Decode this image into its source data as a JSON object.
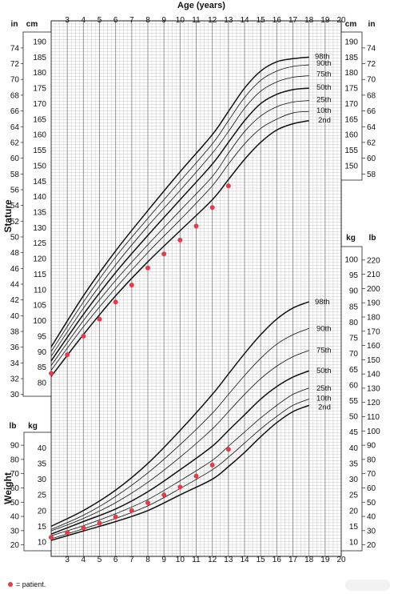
{
  "chart_data": {
    "type": "line",
    "title": "Age (years)",
    "x_range": [
      2,
      20
    ],
    "x_ticks": [
      3,
      4,
      5,
      6,
      7,
      8,
      9,
      10,
      11,
      12,
      13,
      14,
      15,
      16,
      17,
      18,
      19,
      20
    ],
    "stature": {
      "label": "Stature",
      "unit_cm": "cm",
      "unit_in": "in",
      "cm_ticks": [
        80,
        85,
        90,
        95,
        100,
        105,
        110,
        115,
        120,
        125,
        130,
        135,
        140,
        145,
        150,
        155,
        160,
        165,
        170,
        175,
        180,
        185,
        190
      ],
      "in_ticks_left": [
        30,
        32,
        34,
        36,
        38,
        40,
        42,
        44,
        46,
        48,
        50,
        52,
        54,
        56,
        58,
        60,
        62,
        64,
        66,
        68,
        70,
        72,
        74
      ],
      "cm_ticks_right": [
        150,
        155,
        160,
        165,
        170,
        175,
        180,
        185,
        190
      ],
      "in_ticks_right": [
        58,
        60,
        62,
        64,
        66,
        68,
        70,
        72,
        74
      ],
      "x": [
        2,
        4,
        6,
        8,
        10,
        12,
        13,
        14,
        15,
        16,
        17,
        18
      ],
      "series": [
        {
          "name": "2nd",
          "values": [
            82,
            95.5,
            108,
            119,
            129,
            139,
            145.5,
            152,
            157.5,
            161.5,
            163.5,
            164.5
          ]
        },
        {
          "name": "10th",
          "values": [
            84,
            98,
            110.5,
            122,
            132.5,
            143.5,
            150.5,
            157,
            162,
            165,
            167,
            167.5
          ]
        },
        {
          "name": "25th",
          "values": [
            85.5,
            100,
            113,
            124.5,
            135.5,
            146.5,
            154,
            161,
            166,
            169,
            170.5,
            171
          ]
        },
        {
          "name": "50th",
          "values": [
            87,
            102,
            115.5,
            127.5,
            139,
            150.5,
            157.5,
            164.5,
            170,
            173,
            174.5,
            175
          ]
        },
        {
          "name": "75th",
          "values": [
            88.5,
            104,
            118,
            130.5,
            142,
            154,
            161,
            168.5,
            174,
            177,
            178.5,
            179
          ]
        },
        {
          "name": "90th",
          "values": [
            90,
            106,
            120.5,
            133,
            145,
            157,
            164.5,
            172,
            177.5,
            180.5,
            182,
            182.5
          ]
        },
        {
          "name": "98th",
          "values": [
            91.5,
            108,
            122.5,
            135.5,
            148,
            160,
            167.5,
            175,
            180.5,
            183.5,
            184.5,
            185
          ]
        }
      ],
      "patient": {
        "x": [
          2,
          3,
          4,
          5,
          6,
          7,
          8,
          9,
          10,
          11,
          12,
          13
        ],
        "values": [
          83,
          89,
          95,
          100.5,
          106,
          111.5,
          117,
          121.5,
          126,
          130.5,
          136.5,
          143.5
        ]
      }
    },
    "weight": {
      "label": "Weight",
      "unit_kg": "kg",
      "unit_lb": "lb",
      "kg_ticks_left": [
        10,
        15,
        20,
        25,
        30,
        35,
        40
      ],
      "lb_ticks_left": [
        20,
        30,
        40,
        50,
        60,
        70,
        80,
        90
      ],
      "kg_ticks_right": [
        10,
        15,
        20,
        25,
        30,
        35,
        40,
        45,
        50,
        55,
        60,
        65,
        70,
        75,
        80,
        85,
        90,
        95,
        100
      ],
      "lb_ticks_right": [
        20,
        30,
        40,
        50,
        60,
        70,
        80,
        90,
        100,
        110,
        120,
        130,
        140,
        150,
        160,
        170,
        180,
        190,
        200,
        210,
        220
      ],
      "x": [
        2,
        4,
        6,
        8,
        10,
        12,
        13,
        14,
        15,
        16,
        17,
        18
      ],
      "series": [
        {
          "name": "2nd",
          "values": [
            10.5,
            13.5,
            16.5,
            20,
            25,
            30,
            34,
            38.5,
            43.5,
            48,
            51.5,
            53.5
          ]
        },
        {
          "name": "10th",
          "values": [
            11,
            14.2,
            17.5,
            21.5,
            27,
            33,
            37,
            41.5,
            46,
            50,
            53.5,
            55.5
          ]
        },
        {
          "name": "25th",
          "values": [
            12,
            15.2,
            19,
            23.5,
            29.5,
            36,
            40.5,
            45,
            49.5,
            53.5,
            57,
            59
          ]
        },
        {
          "name": "50th",
          "values": [
            12.5,
            16.5,
            20.5,
            26,
            33,
            40.5,
            45.5,
            50.5,
            55.5,
            59.5,
            62.5,
            64.5
          ]
        },
        {
          "name": "75th",
          "values": [
            13.5,
            17.5,
            22.5,
            29,
            37,
            46,
            51.5,
            57,
            62,
            66,
            69,
            71
          ]
        },
        {
          "name": "90th",
          "values": [
            14,
            18.5,
            24.5,
            32,
            41,
            51,
            57,
            63,
            68.5,
            73,
            76,
            78
          ]
        },
        {
          "name": "98th",
          "values": [
            15,
            20,
            26.5,
            35,
            45.5,
            57,
            63.5,
            70,
            76,
            81,
            84.5,
            86.5
          ]
        }
      ],
      "patient": {
        "x": [
          2,
          3,
          4,
          5,
          6,
          7,
          8,
          9,
          10,
          11,
          12,
          13
        ],
        "values": [
          11.5,
          13,
          14.5,
          16,
          18,
          20,
          22.5,
          25,
          27.5,
          31,
          34.5,
          39.5
        ]
      }
    },
    "legend": "= patient.",
    "colors": {
      "grid_major": "#8a8a8a",
      "grid_minor": "#c7c7c7",
      "curve": "#111111",
      "patient": "#e23b4a",
      "background": "#ffffff"
    }
  }
}
